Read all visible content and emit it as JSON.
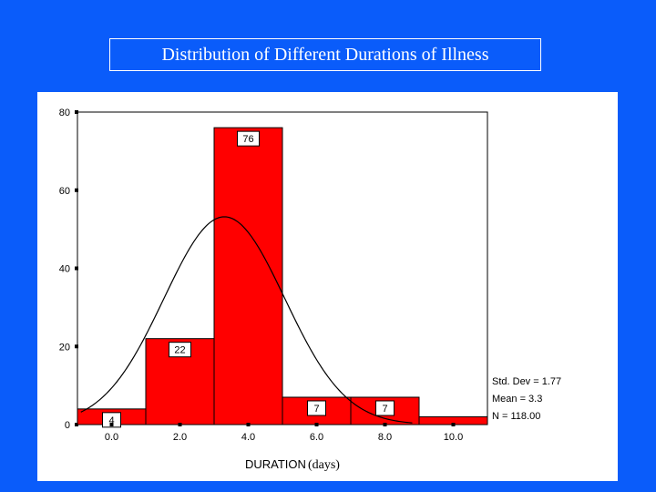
{
  "slide": {
    "title": "Distribution of Different Durations of Illness",
    "background": "#0a5cfa"
  },
  "chart_data": {
    "type": "bar",
    "subtype": "histogram",
    "categories": [
      "0.0",
      "2.0",
      "4.0",
      "6.0",
      "8.0",
      "10.0"
    ],
    "values": [
      4,
      22,
      76,
      7,
      7,
      2
    ],
    "value_labels": [
      "4",
      "22",
      "76",
      "7",
      "7",
      ""
    ],
    "bin_centers": [
      0,
      2,
      4,
      6,
      8,
      10
    ],
    "bin_width": 2,
    "xlabel": "DURATION",
    "xlabel_unit": "(days)",
    "ylabel": "",
    "xlim": [
      -1,
      11
    ],
    "ylim": [
      0,
      80
    ],
    "yticks": [
      0,
      20,
      40,
      60,
      80
    ],
    "bar_color": "#ff0000",
    "normal_curve": {
      "mean": 3.3,
      "std": 1.77,
      "n": 118
    },
    "stats": [
      "Std. Dev = 1.77",
      "Mean = 3.3",
      "N = 118.00"
    ]
  }
}
